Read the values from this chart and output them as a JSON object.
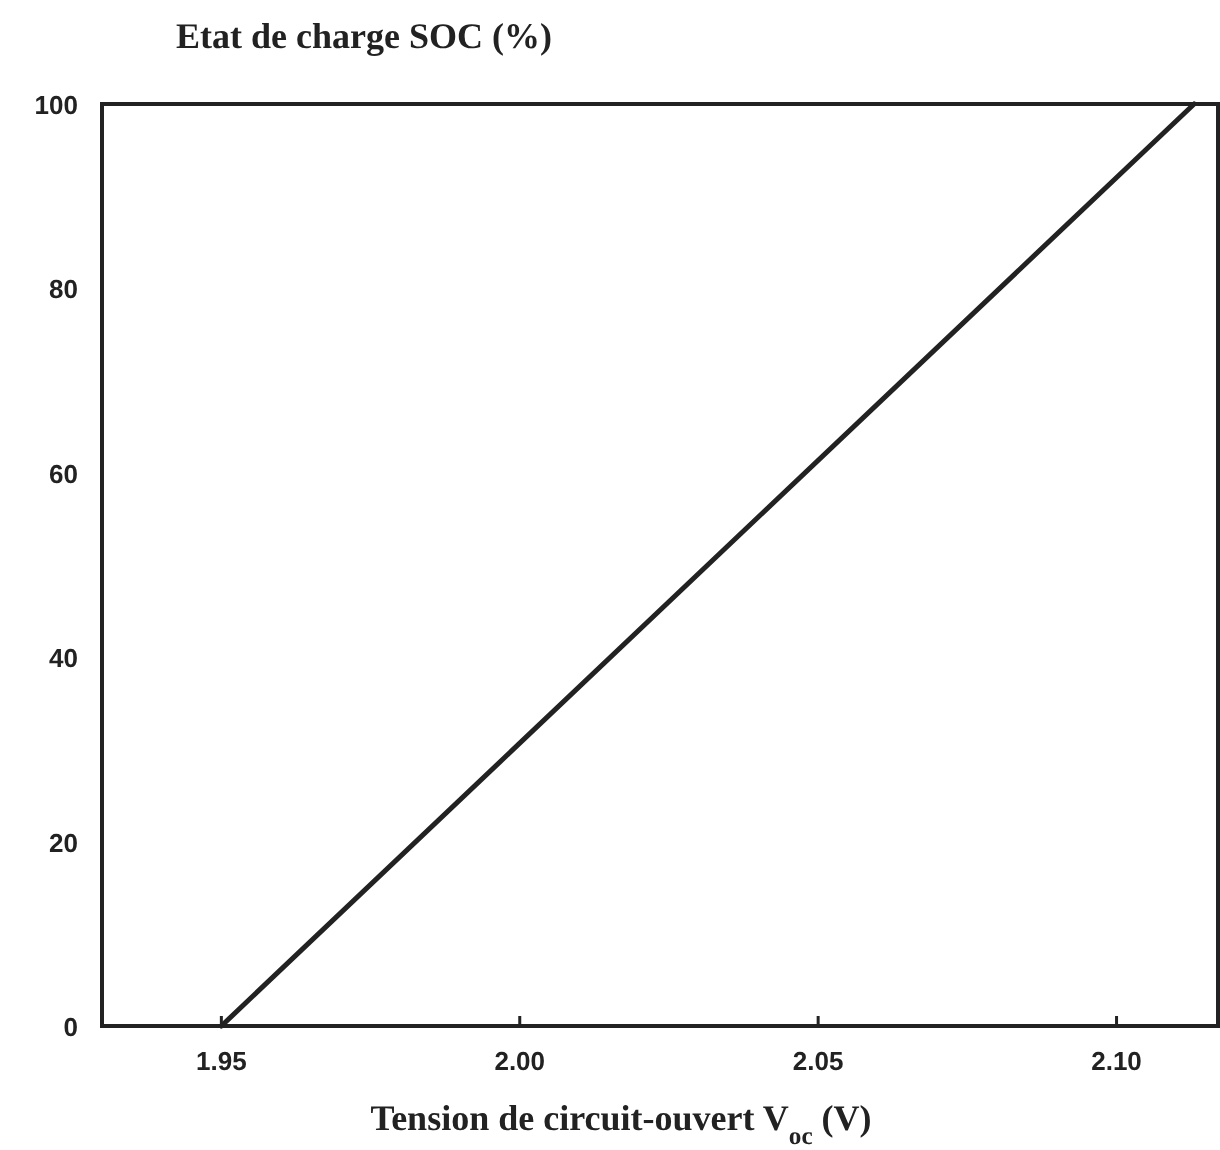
{
  "chart_data": {
    "type": "line",
    "ylabel": "Etat de charge SOC (%)",
    "xlabel": "Tension de circuit-ouvert V$_{oc}$ (V)",
    "series": [
      {
        "color": "#222222",
        "x": [
          1.95,
          2.113
        ],
        "values": [
          0,
          100
        ]
      }
    ],
    "xlim": [
      1.93,
      2.117
    ],
    "ylim": [
      0,
      100
    ],
    "xticks": [
      {
        "value": 1.95,
        "label": "1.95"
      },
      {
        "value": 2.0,
        "label": "2.00"
      },
      {
        "value": 2.05,
        "label": "2.05"
      },
      {
        "value": 2.1,
        "label": "2.10"
      }
    ],
    "yticks": [
      0,
      20,
      40,
      60,
      80,
      100
    ],
    "grid": false,
    "marker": "none",
    "line_style": "solid"
  }
}
